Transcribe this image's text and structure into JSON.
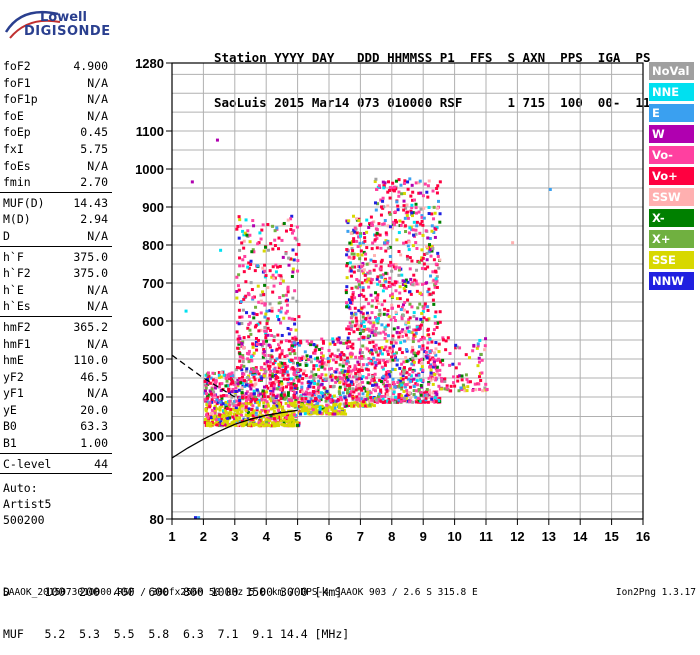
{
  "logo": {
    "line1": "Lowell",
    "line2": "DIGISONDE"
  },
  "header": {
    "labels": "Station YYYY DAY   DDD HHMMSS P1  FFS  S AXN  PPS  IGA  PS",
    "values": "SaoLuis 2015 Mar14 073 010000 RSF      1 715  100  00-  11"
  },
  "params": {
    "group1": [
      {
        "k": "foF2",
        "v": "4.900"
      },
      {
        "k": "foF1",
        "v": "N/A"
      },
      {
        "k": "foF1p",
        "v": "N/A"
      },
      {
        "k": "foE",
        "v": "N/A"
      },
      {
        "k": "foEp",
        "v": "0.45"
      },
      {
        "k": "fxI",
        "v": "5.75"
      },
      {
        "k": "foEs",
        "v": "N/A"
      },
      {
        "k": "fmin",
        "v": "2.70"
      }
    ],
    "group2": [
      {
        "k": "MUF(D)",
        "v": "14.43"
      },
      {
        "k": "M(D)",
        "v": "2.94"
      },
      {
        "k": "D",
        "v": "N/A"
      }
    ],
    "group3": [
      {
        "k": "h`F",
        "v": "375.0"
      },
      {
        "k": "h`F2",
        "v": "375.0"
      },
      {
        "k": "h`E",
        "v": "N/A"
      },
      {
        "k": "h`Es",
        "v": "N/A"
      }
    ],
    "group4": [
      {
        "k": "hmF2",
        "v": "365.2"
      },
      {
        "k": "hmF1",
        "v": "N/A"
      },
      {
        "k": "hmE",
        "v": "110.0"
      },
      {
        "k": "yF2",
        "v": "46.5"
      },
      {
        "k": "yF1",
        "v": "N/A"
      },
      {
        "k": "yE",
        "v": "20.0"
      },
      {
        "k": "B0",
        "v": "63.3"
      },
      {
        "k": "B1",
        "v": "1.00"
      }
    ],
    "group5": [
      {
        "k": "C-level",
        "v": "44"
      }
    ]
  },
  "auto": {
    "line1": "Auto:",
    "line2": "Artist5",
    "line3": "500200"
  },
  "legend": [
    {
      "label": "NoVal",
      "color": "#a0a0a0"
    },
    {
      "label": "NNE",
      "color": "#00e0f0"
    },
    {
      "label": "E",
      "color": "#3aa0f0"
    },
    {
      "label": "W",
      "color": "#b000b0"
    },
    {
      "label": "Vo-",
      "color": "#ff40a0"
    },
    {
      "label": "Vo+",
      "color": "#ff0040"
    },
    {
      "label": "SSW",
      "color": "#ffb0b0"
    },
    {
      "label": "X-",
      "color": "#008000"
    },
    {
      "label": "X+",
      "color": "#70b040"
    },
    {
      "label": "SSE",
      "color": "#d8d800"
    },
    {
      "label": "NNW",
      "color": "#2020e0"
    }
  ],
  "dmuf": {
    "d_line": "D     100  200  400  600  800 1000 1500 3000 [km]",
    "muf_line": "MUF   5.2  5.3  5.5  5.8  6.3  7.1  9.1 14.4 [MHz]"
  },
  "footer": {
    "text": "SAAOK_2015073010000.RSF / 300fx256h 50 kHz 5.0 km / DPS-4 SAAOK 903 / 2.6 S 315.8 E",
    "version": "Ion2Png 1.3.17"
  },
  "chart_data": {
    "type": "scatter",
    "xlim": [
      1,
      16
    ],
    "ylim": [
      80,
      1280
    ],
    "x_ticks": [
      1,
      2,
      3,
      4,
      5,
      6,
      7,
      8,
      9,
      10,
      11,
      12,
      13,
      14,
      15,
      16
    ],
    "y_tick_labels": [
      80,
      200,
      300,
      400,
      500,
      600,
      700,
      800,
      900,
      1000,
      1100,
      1280
    ],
    "y_scale": "nonlinear (virtual height, compressed above 1100)",
    "grid": true,
    "curves": [
      {
        "name": "lower_trace",
        "x": [
          1.0,
          1.5,
          2.0,
          2.5,
          3.0,
          3.5,
          4.0,
          4.5,
          5.0
        ],
        "y": [
          245,
          270,
          292,
          312,
          330,
          343,
          353,
          360,
          366
        ]
      },
      {
        "name": "dashed_trace",
        "x": [
          1.0,
          1.5,
          2.0,
          2.5,
          3.0
        ],
        "y": [
          510,
          480,
          450,
          425,
          400
        ]
      }
    ],
    "clusters": [
      {
        "x_range": [
          2.0,
          5.0
        ],
        "y_range": [
          330,
          470
        ],
        "density": "high"
      },
      {
        "x_range": [
          3.0,
          5.0
        ],
        "y_range": [
          470,
          880
        ],
        "density": "medium"
      },
      {
        "x_range": [
          5.0,
          6.5
        ],
        "y_range": [
          360,
          560
        ],
        "density": "medium"
      },
      {
        "x_range": [
          6.5,
          7.4
        ],
        "y_range": [
          380,
          880
        ],
        "density": "medium"
      },
      {
        "x_range": [
          7.4,
          9.5
        ],
        "y_range": [
          390,
          980
        ],
        "density": "high"
      },
      {
        "x_range": [
          9.5,
          11.0
        ],
        "y_range": [
          420,
          560
        ],
        "density": "low"
      }
    ],
    "outliers": [
      {
        "x": 2.4,
        "y": 1080,
        "label": "W"
      },
      {
        "x": 1.6,
        "y": 970,
        "label": "W"
      },
      {
        "x": 13.0,
        "y": 950,
        "label": "E"
      },
      {
        "x": 1.8,
        "y": 88,
        "label": "E"
      },
      {
        "x": 1.7,
        "y": 88,
        "label": "NNW"
      },
      {
        "x": 2.5,
        "y": 790,
        "label": "NNE"
      },
      {
        "x": 11.8,
        "y": 810,
        "label": "SSW"
      },
      {
        "x": 1.4,
        "y": 630,
        "label": "NNE"
      }
    ]
  }
}
